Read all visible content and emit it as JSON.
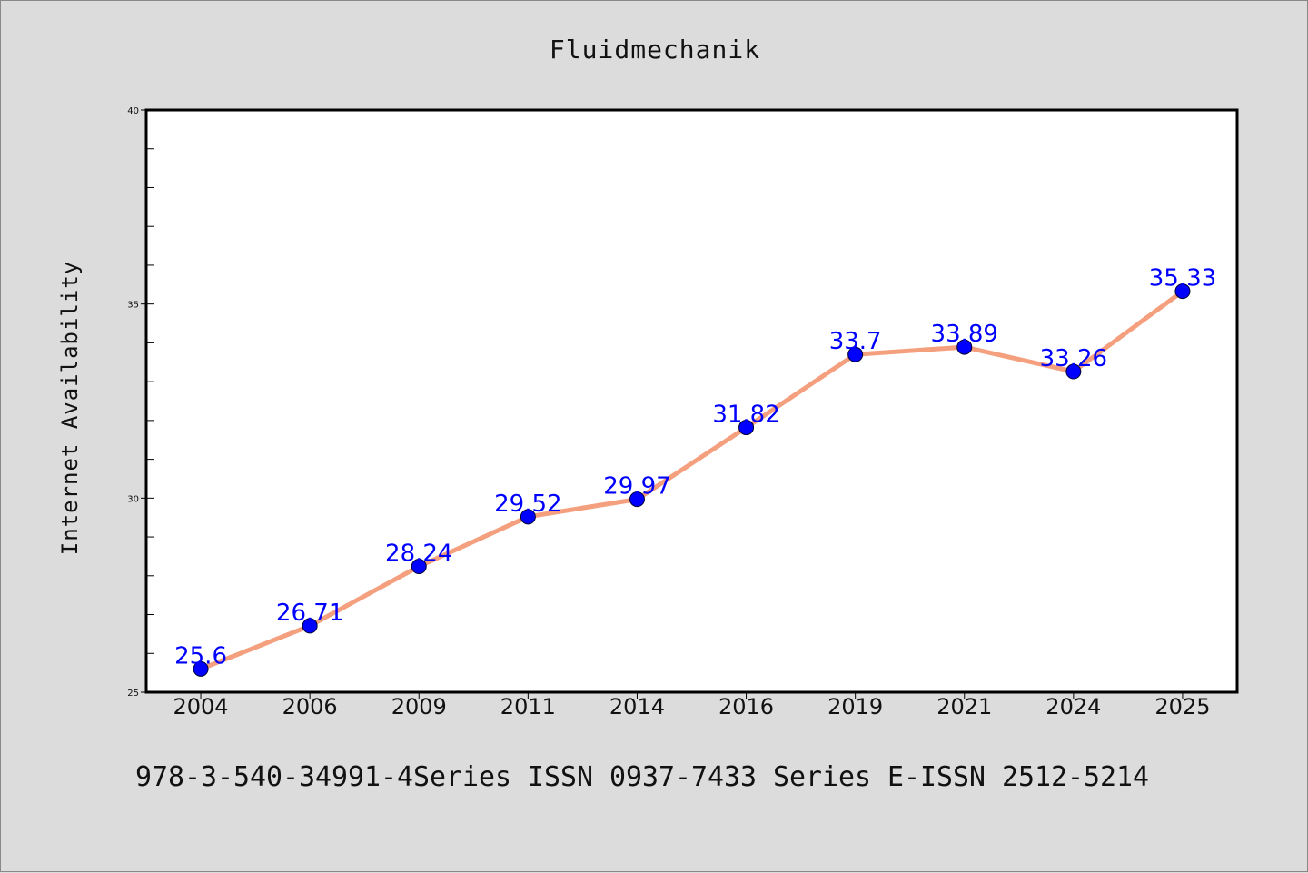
{
  "chart_data": {
    "type": "line",
    "title": "Fluidmechanik",
    "xlabel": "",
    "ylabel": "Internet Availability",
    "categories": [
      "2004",
      "2006",
      "2009",
      "2011",
      "2014",
      "2016",
      "2019",
      "2021",
      "2024",
      "2025"
    ],
    "series": [
      {
        "values": [
          25.6,
          26.71,
          28.24,
          29.52,
          29.97,
          31.82,
          33.7,
          33.89,
          33.26,
          35.33
        ],
        "labels": [
          "25.6",
          "26.71",
          "28.24",
          "29.52",
          "29.97",
          "31.82",
          "33.7",
          "33.89",
          "33.26",
          "35.33"
        ]
      }
    ],
    "ylim": [
      25,
      40
    ],
    "yticks": [
      "25",
      "30",
      "35",
      "40"
    ],
    "yminor_step": 1,
    "grid": false,
    "legend": "none",
    "colors": {
      "line": "#f4a07e",
      "marker": "#0000ff",
      "label": "#0000ff",
      "background": "#dcdcdc",
      "plot_background": "#ffffff"
    }
  },
  "footer": "978-3-540-34991-4Series ISSN 0937-7433 Series E-ISSN 2512-5214"
}
